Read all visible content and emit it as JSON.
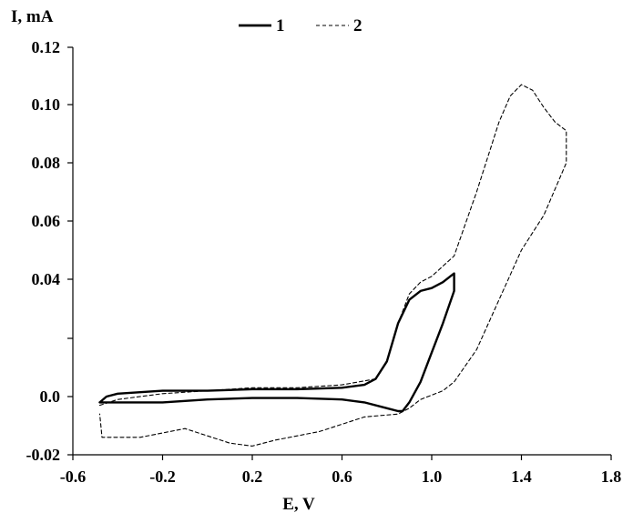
{
  "chart_data": {
    "type": "line",
    "xlabel": "E, V",
    "ylabel": "I, mA",
    "xlim": [
      -0.6,
      1.8
    ],
    "ylim": [
      -0.02,
      0.12
    ],
    "x_ticks": [
      -0.6,
      -0.2,
      0.2,
      0.6,
      1.0,
      1.4,
      1.8
    ],
    "x_tick_labels": [
      "-0.6",
      "-0.2",
      "0.2",
      "0.6",
      "1.0",
      "1.4",
      "1.8"
    ],
    "y_ticks": [
      -0.02,
      0.0,
      0.04,
      0.06,
      0.08,
      0.1,
      0.12
    ],
    "y_tick_labels": [
      "-0.02",
      "0.0",
      "0.04",
      "0.06",
      "0.08",
      "0.10",
      "0.12"
    ],
    "grid": false,
    "legend_position": "top-center",
    "series": [
      {
        "name": "1",
        "style": "solid",
        "color": "#000000",
        "x": [
          -0.48,
          -0.45,
          -0.4,
          -0.2,
          0.0,
          0.2,
          0.4,
          0.6,
          0.7,
          0.75,
          0.8,
          0.85,
          0.9,
          0.95,
          1.0,
          1.05,
          1.1,
          1.1,
          1.05,
          1.0,
          0.95,
          0.9,
          0.87,
          0.85,
          0.8,
          0.7,
          0.6,
          0.4,
          0.2,
          0.0,
          -0.2,
          -0.4,
          -0.48
        ],
        "y": [
          -0.002,
          0.0,
          0.001,
          0.002,
          0.002,
          0.0025,
          0.0025,
          0.003,
          0.004,
          0.006,
          0.012,
          0.025,
          0.033,
          0.036,
          0.037,
          0.039,
          0.042,
          0.036,
          0.025,
          0.015,
          0.005,
          -0.002,
          -0.005,
          -0.005,
          -0.004,
          -0.002,
          -0.001,
          -0.0005,
          -0.0005,
          -0.001,
          -0.002,
          -0.002,
          -0.002
        ]
      },
      {
        "name": "2",
        "style": "dashed",
        "color": "#000000",
        "x": [
          -0.48,
          -0.4,
          -0.2,
          0.0,
          0.2,
          0.4,
          0.6,
          0.75,
          0.8,
          0.85,
          0.9,
          0.95,
          1.0,
          1.1,
          1.2,
          1.3,
          1.35,
          1.4,
          1.45,
          1.5,
          1.55,
          1.6,
          1.6,
          1.5,
          1.4,
          1.3,
          1.2,
          1.1,
          1.05,
          1.0,
          0.95,
          0.9,
          0.85,
          0.7,
          0.5,
          0.3,
          0.2,
          0.1,
          -0.1,
          -0.3,
          -0.4,
          -0.47,
          -0.48
        ],
        "y": [
          -0.003,
          -0.001,
          0.001,
          0.002,
          0.003,
          0.003,
          0.004,
          0.006,
          0.012,
          0.025,
          0.035,
          0.039,
          0.041,
          0.048,
          0.07,
          0.094,
          0.103,
          0.107,
          0.105,
          0.099,
          0.094,
          0.091,
          0.08,
          0.062,
          0.05,
          0.033,
          0.016,
          0.005,
          0.002,
          0.0005,
          -0.001,
          -0.004,
          -0.006,
          -0.007,
          -0.012,
          -0.015,
          -0.017,
          -0.016,
          -0.011,
          -0.014,
          -0.014,
          -0.014,
          -0.006
        ]
      }
    ]
  }
}
